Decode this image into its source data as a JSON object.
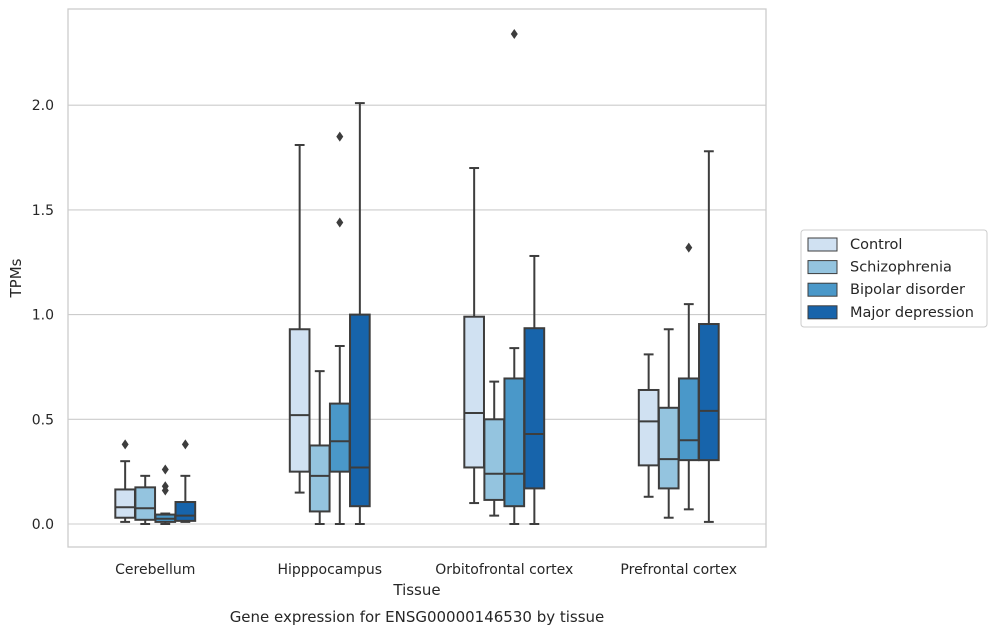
{
  "chart_data": {
    "type": "boxplot",
    "xlabel": "Tissue",
    "ylabel": "TPMs",
    "caption": "Gene expression for ENSG00000146530 by tissue",
    "ylim": [
      -0.11,
      2.47
    ],
    "yticks": [
      "0.0",
      "0.5",
      "1.0",
      "1.5",
      "2.0"
    ],
    "grid": true,
    "legend_position": "right",
    "categories": [
      "Cerebellum",
      "Hipppocampus",
      "Orbitofrontal cortex",
      "Prefrontal cortex"
    ],
    "series": [
      {
        "name": "Control",
        "color": "#d0e1f2",
        "boxes": [
          {
            "whislo": 0.01,
            "q1": 0.03,
            "med": 0.08,
            "q3": 0.165,
            "whishi": 0.3,
            "fliers": [
              0.38
            ]
          },
          {
            "whislo": 0.15,
            "q1": 0.25,
            "med": 0.52,
            "q3": 0.93,
            "whishi": 1.81,
            "fliers": []
          },
          {
            "whislo": 0.1,
            "q1": 0.27,
            "med": 0.53,
            "q3": 0.99,
            "whishi": 1.7,
            "fliers": []
          },
          {
            "whislo": 0.13,
            "q1": 0.28,
            "med": 0.49,
            "q3": 0.64,
            "whishi": 0.81,
            "fliers": []
          }
        ]
      },
      {
        "name": "Schizophrenia",
        "color": "#94c4df",
        "boxes": [
          {
            "whislo": 0.0,
            "q1": 0.02,
            "med": 0.075,
            "q3": 0.175,
            "whishi": 0.23,
            "fliers": []
          },
          {
            "whislo": 0.0,
            "q1": 0.06,
            "med": 0.23,
            "q3": 0.375,
            "whishi": 0.73,
            "fliers": []
          },
          {
            "whislo": 0.04,
            "q1": 0.115,
            "med": 0.24,
            "q3": 0.5,
            "whishi": 0.68,
            "fliers": []
          },
          {
            "whislo": 0.03,
            "q1": 0.17,
            "med": 0.31,
            "q3": 0.555,
            "whishi": 0.93,
            "fliers": []
          }
        ]
      },
      {
        "name": "Bipolar disorder",
        "color": "#4a98c9",
        "boxes": [
          {
            "whislo": 0.0,
            "q1": 0.01,
            "med": 0.025,
            "q3": 0.045,
            "whishi": 0.05,
            "fliers": [
              0.26,
              0.18,
              0.16
            ]
          },
          {
            "whislo": 0.0,
            "q1": 0.25,
            "med": 0.395,
            "q3": 0.575,
            "whishi": 0.85,
            "fliers": [
              1.85,
              1.44
            ]
          },
          {
            "whislo": 0.0,
            "q1": 0.085,
            "med": 0.24,
            "q3": 0.695,
            "whishi": 0.84,
            "fliers": [
              2.34
            ]
          },
          {
            "whislo": 0.07,
            "q1": 0.305,
            "med": 0.4,
            "q3": 0.695,
            "whishi": 1.05,
            "fliers": [
              1.32
            ]
          }
        ]
      },
      {
        "name": "Major depression",
        "color": "#1764ab",
        "boxes": [
          {
            "whislo": 0.01,
            "q1": 0.015,
            "med": 0.04,
            "q3": 0.105,
            "whishi": 0.23,
            "fliers": [
              0.38
            ]
          },
          {
            "whislo": 0.0,
            "q1": 0.085,
            "med": 0.27,
            "q3": 1.0,
            "whishi": 2.01,
            "fliers": []
          },
          {
            "whislo": 0.0,
            "q1": 0.17,
            "med": 0.43,
            "q3": 0.935,
            "whishi": 1.28,
            "fliers": []
          },
          {
            "whislo": 0.01,
            "q1": 0.305,
            "med": 0.54,
            "q3": 0.955,
            "whishi": 1.78,
            "fliers": []
          }
        ]
      }
    ]
  }
}
